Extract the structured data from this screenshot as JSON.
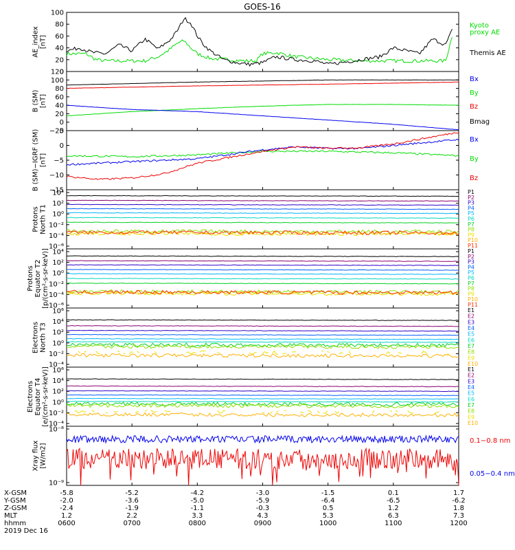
{
  "title": "GOES-16",
  "x_axis": {
    "ticks": [
      0,
      1,
      2,
      3,
      4,
      5,
      6
    ],
    "hhmm": [
      "0600",
      "0700",
      "0800",
      "0900",
      "1000",
      "1100",
      "1200"
    ],
    "xgsm": [
      "-5.8",
      "-5.2",
      "-4.2",
      "-3.0",
      "-1.5",
      "0.1",
      "1.7"
    ],
    "ygsm": [
      "-2.0",
      "-3.6",
      "-5.0",
      "-5.9",
      "-6.4",
      "-6.5",
      "-6.2"
    ],
    "zgsm": [
      "-2.4",
      "-1.9",
      "-1.1",
      "-0.3",
      "0.5",
      "1.2",
      "1.8"
    ],
    "mlt": [
      "1.2",
      "2.2",
      "3.3",
      "4.3",
      "5.3",
      "6.3",
      "7.3"
    ],
    "row_labels": [
      "X-GSM",
      "Y-GSM",
      "Z-GSM",
      "MLT",
      "hhmm"
    ],
    "date": "2019 Dec 16"
  },
  "colors": {
    "black": "#000000",
    "blue": "#0000ee",
    "green": "#00dd00",
    "red": "#ee0000",
    "channels": [
      "#000000",
      "#8a0070",
      "#2b00c8",
      "#0060ff",
      "#00b4ff",
      "#00d8c0",
      "#00d020",
      "#90e000",
      "#e8e000",
      "#ffb000",
      "#ff3000"
    ]
  },
  "chart_data": [
    {
      "type": "line",
      "id": "ae",
      "ylabel": [
        "AE_index",
        "[nT]"
      ],
      "ylim": [
        0,
        100
      ],
      "yticks": [
        "0",
        "20",
        "40",
        "60",
        "80",
        "100"
      ],
      "legend": [
        "Kyoto",
        "proxy AE",
        "Themis AE"
      ],
      "series": [
        {
          "name": "Kyoto proxy AE",
          "x": [
            0,
            0.3,
            0.45,
            0.6,
            0.8,
            1.0,
            1.2,
            1.4,
            1.55,
            1.7,
            1.8,
            1.9,
            2.0,
            2.2,
            2.5,
            2.7,
            2.9,
            3.0,
            3.2,
            3.5,
            4.0,
            4.5,
            5.0,
            5.5,
            5.8,
            5.9
          ],
          "y": [
            30,
            30,
            20,
            18,
            18,
            18,
            18,
            25,
            35,
            48,
            52,
            40,
            30,
            22,
            20,
            18,
            18,
            30,
            32,
            25,
            20,
            18,
            18,
            18,
            18,
            60
          ]
        },
        {
          "name": "Themis AE",
          "x": [
            0,
            0.2,
            0.4,
            0.6,
            0.8,
            1.0,
            1.2,
            1.4,
            1.6,
            1.7,
            1.8,
            1.9,
            2.0,
            2.1,
            2.2,
            2.4,
            2.6,
            2.8,
            3.0,
            3.2,
            3.5,
            3.8,
            4.0,
            4.2,
            4.5,
            4.8,
            5.0,
            5.2,
            5.4,
            5.6,
            5.8,
            5.9
          ],
          "y": [
            35,
            40,
            32,
            30,
            45,
            35,
            55,
            38,
            55,
            70,
            90,
            82,
            60,
            45,
            35,
            20,
            15,
            12,
            15,
            25,
            20,
            18,
            12,
            15,
            20,
            25,
            40,
            35,
            30,
            55,
            45,
            70
          ]
        }
      ]
    },
    {
      "type": "line",
      "id": "bsm",
      "ylabel": [
        "B (SM)",
        "[nT]"
      ],
      "ylim": [
        -20,
        120
      ],
      "yticks": [
        "−20",
        "0",
        "20",
        "40",
        "60",
        "80",
        "100",
        "120"
      ],
      "legend": [
        "Bx",
        "By",
        "Bz",
        "Bmag"
      ],
      "series": [
        {
          "name": "Bmag",
          "x": [
            0,
            2,
            4,
            6
          ],
          "y": [
            88,
            95,
            100,
            100
          ]
        },
        {
          "name": "Bz",
          "x": [
            0,
            2,
            4,
            6
          ],
          "y": [
            80,
            86,
            90,
            95
          ]
        },
        {
          "name": "By",
          "x": [
            0,
            1,
            2,
            3,
            4,
            5,
            6
          ],
          "y": [
            15,
            25,
            32,
            38,
            42,
            42,
            40
          ]
        },
        {
          "name": "Bx",
          "x": [
            0,
            1,
            2,
            3,
            4,
            5,
            6
          ],
          "y": [
            40,
            30,
            25,
            15,
            5,
            -5,
            -18
          ]
        }
      ]
    },
    {
      "type": "line",
      "id": "bigrf",
      "ylabel": [
        "B (SM)−IGRF (SM)",
        "[nT]"
      ],
      "ylim": [
        -15,
        5
      ],
      "yticks": [
        "−15",
        "−10",
        "−5",
        "0",
        "5"
      ],
      "legend": [
        "Bx",
        "By",
        "Bz"
      ],
      "series": [
        {
          "name": "By",
          "x": [
            0,
            1,
            2,
            3,
            4,
            5,
            6
          ],
          "y": [
            -3.5,
            -3.8,
            -3.2,
            -2.0,
            -2.0,
            -2.5,
            -3.5
          ]
        },
        {
          "name": "Bx",
          "x": [
            0,
            0.5,
            1,
            1.5,
            2,
            2.5,
            3,
            3.5,
            4,
            4.5,
            5,
            5.5,
            6
          ],
          "y": [
            -6.5,
            -6.0,
            -5.5,
            -5.0,
            -4.5,
            -3.0,
            -1.5,
            -0.5,
            -1.0,
            -1.0,
            0,
            1.0,
            2.0
          ]
        },
        {
          "name": "Bz",
          "x": [
            0,
            0.5,
            1,
            1.5,
            2,
            2.5,
            3,
            3.5,
            4,
            4.5,
            5,
            5.5,
            6
          ],
          "y": [
            -10.5,
            -11.5,
            -11.0,
            -9.5,
            -6.0,
            -4.0,
            -2.0,
            -0.5,
            -1.0,
            -0.8,
            0.5,
            2.5,
            4.5
          ]
        }
      ]
    },
    {
      "type": "line",
      "id": "p1",
      "log": true,
      "ylabel": [
        "Protons",
        "North T1"
      ],
      "ylim": [
        -6,
        4
      ],
      "yticks": [
        "10⁴",
        "10²",
        "10⁰",
        "10⁻²",
        "10⁻⁴",
        "10⁻⁶"
      ],
      "legend": [
        "P1",
        "P2",
        "P3",
        "P4",
        "P5",
        "P6",
        "P7",
        "P8",
        "P9",
        "P10",
        "P11"
      ],
      "levels": [
        3.0,
        2.2,
        1.5,
        0.8,
        0.1,
        -0.7,
        -1.5,
        -3.0,
        -3.4,
        -3.3,
        -3.2
      ]
    },
    {
      "type": "line",
      "id": "p2",
      "log": true,
      "ylabel": [
        "Protons",
        "Equator T2",
        "[p/(cm²-s-sr-keV)]"
      ],
      "ylim": [
        -6,
        4
      ],
      "yticks": [
        "10⁴",
        "10²",
        "10⁰",
        "10⁻²",
        "10⁻⁴",
        "10⁻⁶"
      ],
      "legend": [
        "P1",
        "P2",
        "P3",
        "P4",
        "P5",
        "P6",
        "P7",
        "P8",
        "P9",
        "P10",
        "P11"
      ],
      "levels": [
        2.8,
        2.0,
        1.3,
        0.5,
        -0.2,
        -1.0,
        -1.8,
        -3.2,
        -3.5,
        -3.4,
        -3.3
      ]
    },
    {
      "type": "line",
      "id": "e1",
      "log": true,
      "ylabel": [
        "Electrons",
        "North T3"
      ],
      "ylim": [
        -4,
        6
      ],
      "yticks": [
        "10⁶",
        "10⁴",
        "10²",
        "10⁰",
        "10⁻²",
        "10⁻⁴"
      ],
      "legend": [
        "E1",
        "E2",
        "E3",
        "E4",
        "E5",
        "E6",
        "E7",
        "E8",
        "E9",
        "E10"
      ],
      "levels": [
        4.0,
        3.0,
        2.2,
        1.5,
        0.8,
        0.3,
        -0.2,
        -0.5,
        -1.5,
        -2.0
      ]
    },
    {
      "type": "line",
      "id": "e2",
      "log": true,
      "ylabel": [
        "Electrons",
        "Equator T4",
        "[e/(cm²-s-sr-keV)]"
      ],
      "ylim": [
        -4,
        6
      ],
      "yticks": [
        "10⁶",
        "10⁴",
        "10²",
        "10⁰",
        "10⁻²",
        "10⁻⁴"
      ],
      "legend": [
        "E1",
        "E2",
        "E3",
        "E4",
        "E5",
        "E6",
        "E7",
        "E8",
        "E9",
        "E10"
      ],
      "levels": [
        4.0,
        2.8,
        2.0,
        1.3,
        0.7,
        0.2,
        -0.2,
        -0.5,
        -1.5,
        -2.0
      ]
    },
    {
      "type": "line",
      "id": "xray",
      "log": true,
      "ylabel": [
        "Xray flux",
        "[W/m2]"
      ],
      "ylim": [
        -9,
        -8
      ],
      "yticks": [
        "10⁻⁸",
        "10⁻⁹"
      ],
      "legend": [
        "0.1−0.8 nm",
        "0.05−0.4 nm"
      ],
      "series": [
        {
          "name": "0.05−0.4 nm",
          "mean": -8.22
        },
        {
          "name": "0.1−0.8 nm",
          "mean": -8.55
        }
      ]
    }
  ]
}
